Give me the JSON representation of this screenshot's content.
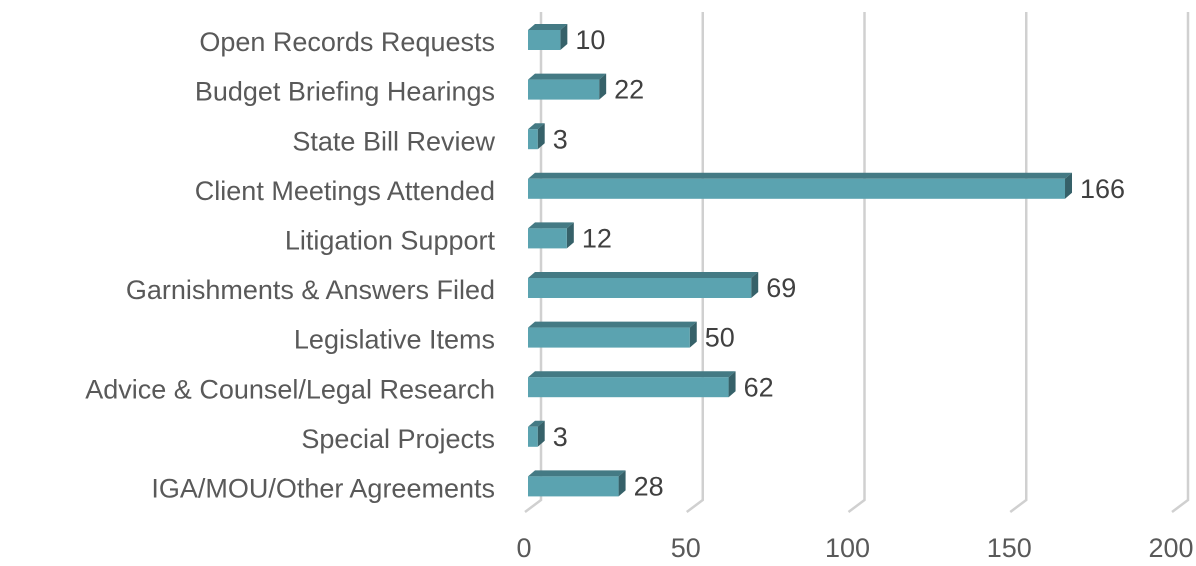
{
  "chart_data": {
    "type": "bar",
    "orientation": "horizontal",
    "categories": [
      "Open Records Requests",
      "Budget Briefing Hearings",
      "State Bill Review",
      "Client Meetings Attended",
      "Litigation Support",
      "Garnishments & Answers Filed",
      "Legislative Items",
      "Advice & Counsel/Legal Research",
      "Special Projects",
      "IGA/MOU/Other Agreements"
    ],
    "values": [
      10,
      22,
      3,
      166,
      12,
      69,
      50,
      62,
      3,
      28
    ],
    "color": "#5ba3b0",
    "xlim": [
      0,
      200
    ],
    "xticks": [
      0,
      50,
      100,
      150,
      200
    ],
    "grid": true
  }
}
